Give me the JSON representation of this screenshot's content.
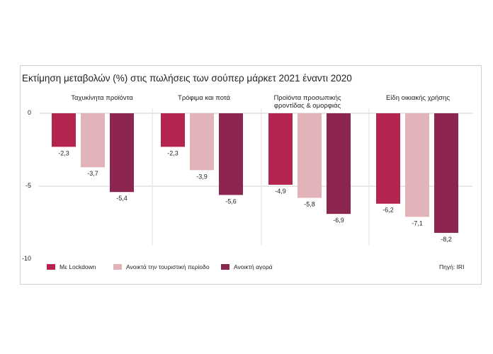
{
  "chart_data": {
    "type": "bar",
    "title": "Εκτίμηση μεταβολών (%) στις πωλήσεις των σούπερ μάρκετ 2021 έναντι 2020",
    "categories": [
      "Ταχυκίνητα προϊόντα",
      "Τρόφιμα και ποτά",
      "Προϊόντα προσωπικής φροντίδας & ομορφιάς",
      "Είδη οικιακής χρήσης"
    ],
    "category_lines": [
      [
        "Ταχυκίνητα προϊόντα"
      ],
      [
        "Τρόφιμα και ποτά"
      ],
      [
        "Προϊόντα προσωπικής",
        "φροντίδας & ομορφιάς"
      ],
      [
        "Είδη οικιακής χρήσης"
      ]
    ],
    "series": [
      {
        "name": "Με Lockdown",
        "values": [
          -2.3,
          -2.3,
          -4.9,
          -6.2
        ],
        "labels": [
          "-2,3",
          "-2,3",
          "-4,9",
          "-6,2"
        ],
        "color": "#b5234f"
      },
      {
        "name": "Ανοικτά την τουριστική περίοδο",
        "values": [
          -3.7,
          -3.9,
          -5.8,
          -7.1
        ],
        "labels": [
          "-3,7",
          "-3,9",
          "-5,8",
          "-7,1"
        ],
        "color": "#e2b3b8"
      },
      {
        "name": "Ανοικτή αγορά",
        "values": [
          -5.4,
          -5.6,
          -6.9,
          -8.2
        ],
        "labels": [
          "-5,4",
          "-5,6",
          "-6,9",
          "-8,2"
        ],
        "color": "#8c2650"
      }
    ],
    "yticks": [
      "0",
      "-5",
      "-10"
    ],
    "ytick_values": [
      0,
      -5,
      -10
    ],
    "ylim": [
      -10,
      0
    ],
    "grid": true,
    "legend_position": "bottom"
  },
  "source": "Πηγή: IRI"
}
